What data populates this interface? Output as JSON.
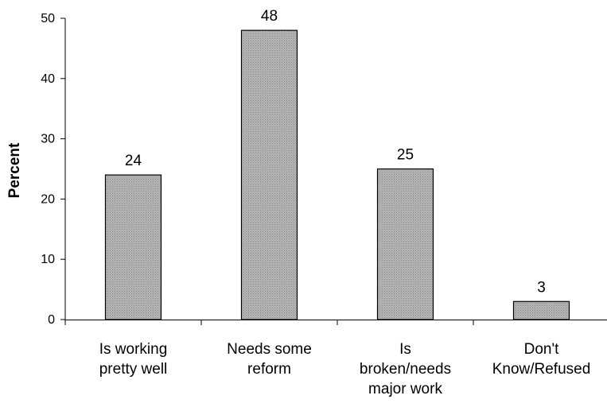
{
  "chart_data": {
    "type": "bar",
    "categories": [
      [
        "Is working",
        "pretty well"
      ],
      [
        "Needs some",
        "reform"
      ],
      [
        "Is",
        "broken/needs",
        "major work"
      ],
      [
        "Don't",
        "Know/Refused"
      ]
    ],
    "values": [
      24,
      48,
      25,
      3
    ],
    "data_labels": [
      "24",
      "48",
      "25",
      "3"
    ],
    "ylabel": "Percent",
    "xlabel": "",
    "title": "",
    "ylim": [
      0,
      50
    ],
    "yticks": [
      0,
      10,
      20,
      30,
      40,
      50
    ],
    "grid": false,
    "legend": "none",
    "bar_color": "#a6a6a6",
    "bar_edge_color": "#000000"
  }
}
